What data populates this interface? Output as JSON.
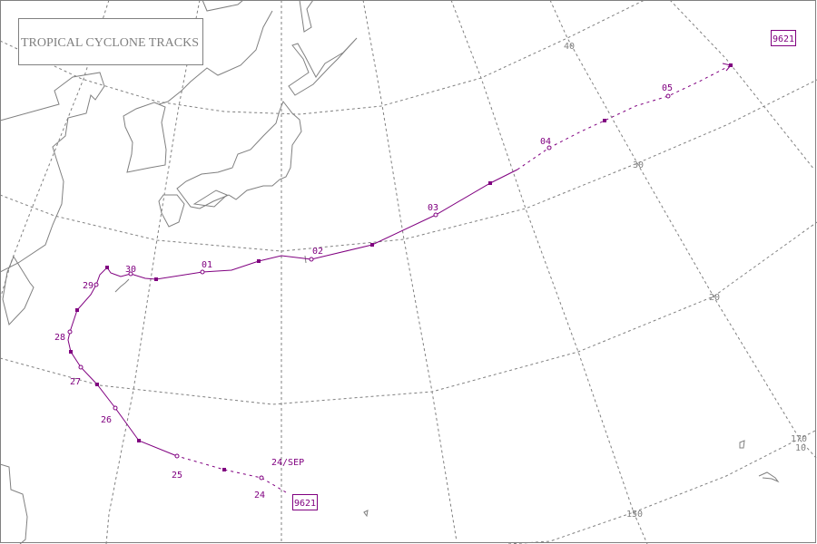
{
  "map": {
    "title": "TROPICAL CYCLONE TRACKS",
    "colors": {
      "track": "#800080",
      "grid": "#808080",
      "coast": "#808080"
    },
    "grid_labels": {
      "lat": [
        "40",
        "30",
        "20",
        "10"
      ],
      "lon": [
        "150",
        "170"
      ]
    },
    "track": {
      "id": "9621",
      "start_label": "24/SEP",
      "day_labels": [
        "24",
        "25",
        "26",
        "27",
        "28",
        "29",
        "30",
        "01",
        "02",
        "03",
        "04",
        "05"
      ]
    }
  }
}
